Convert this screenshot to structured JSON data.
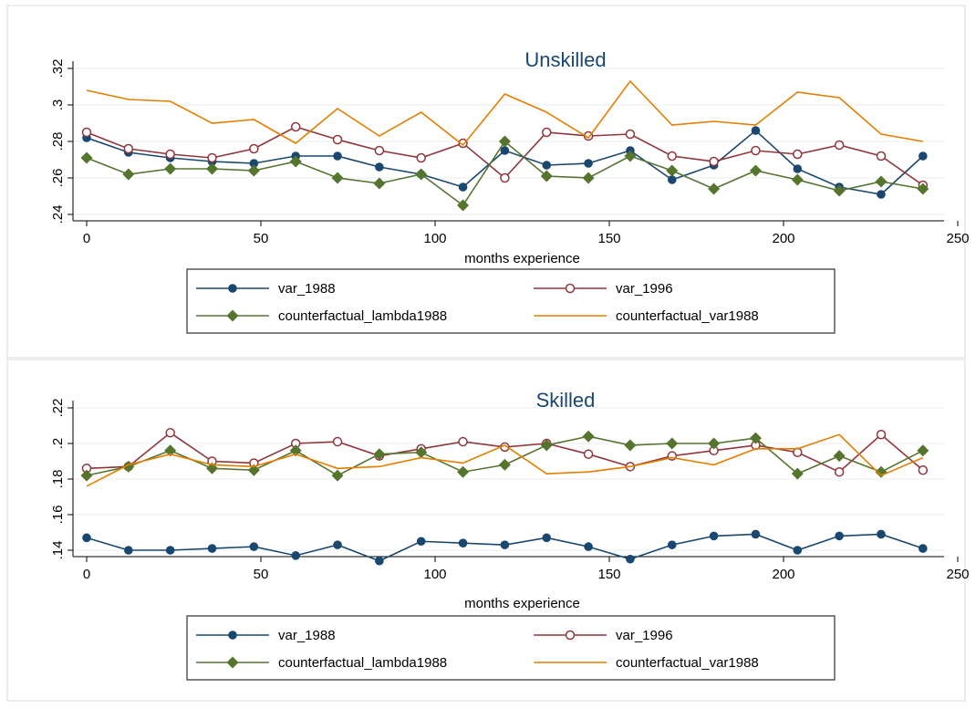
{
  "colors": {
    "var_1988": "#1a476f",
    "var_1996": "#90353b",
    "counterfactual_lambda1988": "#55752f",
    "counterfactual_var1988": "#e37e00"
  },
  "markers": {
    "var_1988": "filled-circle",
    "var_1996": "hollow-circle",
    "counterfactual_lambda1988": "filled-diamond",
    "counterfactual_var1988": "none"
  },
  "chart_data": [
    {
      "type": "line",
      "title": "Unskilled",
      "xlabel": "months experience",
      "ylabel": "",
      "xlim": [
        0,
        250
      ],
      "ylim": [
        0.24,
        0.32
      ],
      "xticks": [
        0,
        50,
        100,
        150,
        200,
        250
      ],
      "xtick_labels": [
        "0",
        "50",
        "100",
        "150",
        "200",
        "250"
      ],
      "yticks": [
        0.24,
        0.26,
        0.28,
        0.3,
        0.32
      ],
      "ytick_labels": [
        ".24",
        ".26",
        ".28",
        ".3",
        ".32"
      ],
      "grid": true,
      "legend_position": "bottom",
      "x": [
        0,
        12,
        24,
        36,
        48,
        60,
        72,
        84,
        96,
        108,
        120,
        132,
        144,
        156,
        168,
        180,
        192,
        204,
        216,
        228,
        240
      ],
      "series": [
        {
          "name": "var_1988",
          "values": [
            0.282,
            0.274,
            0.271,
            0.269,
            0.268,
            0.272,
            0.272,
            0.266,
            0.262,
            0.255,
            0.275,
            0.267,
            0.268,
            0.275,
            0.259,
            0.267,
            0.286,
            0.265,
            0.255,
            0.251,
            0.272
          ]
        },
        {
          "name": "var_1996",
          "values": [
            0.285,
            0.276,
            0.273,
            0.271,
            0.276,
            0.288,
            0.281,
            0.275,
            0.271,
            0.279,
            0.26,
            0.285,
            0.283,
            0.284,
            0.272,
            0.269,
            0.275,
            0.273,
            0.278,
            0.272,
            0.256
          ]
        },
        {
          "name": "counterfactual_lambda1988",
          "values": [
            0.271,
            0.262,
            0.265,
            0.265,
            0.264,
            0.269,
            0.26,
            0.257,
            0.262,
            0.245,
            0.28,
            0.261,
            0.26,
            0.272,
            0.264,
            0.254,
            0.264,
            0.259,
            0.253,
            0.258,
            0.254
          ]
        },
        {
          "name": "counterfactual_var1988",
          "values": [
            0.308,
            0.303,
            0.302,
            0.29,
            0.292,
            0.279,
            0.298,
            0.283,
            0.296,
            0.278,
            0.306,
            0.296,
            0.282,
            0.313,
            0.289,
            0.291,
            0.289,
            0.307,
            0.304,
            0.284,
            0.28
          ]
        }
      ],
      "legend": [
        "var_1988",
        "var_1996",
        "counterfactual_lambda1988",
        "counterfactual_var1988"
      ]
    },
    {
      "type": "line",
      "title": "Skilled",
      "xlabel": "months experience",
      "ylabel": "",
      "xlim": [
        0,
        250
      ],
      "ylim": [
        0.14,
        0.22
      ],
      "xticks": [
        0,
        50,
        100,
        150,
        200,
        250
      ],
      "xtick_labels": [
        "0",
        "50",
        "100",
        "150",
        "200",
        "250"
      ],
      "yticks": [
        0.14,
        0.16,
        0.18,
        0.2,
        0.22
      ],
      "ytick_labels": [
        ".14",
        ".16",
        ".18",
        ".2",
        ".22"
      ],
      "grid": true,
      "legend_position": "bottom",
      "x": [
        0,
        12,
        24,
        36,
        48,
        60,
        72,
        84,
        96,
        108,
        120,
        132,
        144,
        156,
        168,
        180,
        192,
        204,
        216,
        228,
        240
      ],
      "series": [
        {
          "name": "var_1988",
          "values": [
            0.147,
            0.14,
            0.14,
            0.141,
            0.142,
            0.137,
            0.143,
            0.134,
            0.145,
            0.144,
            0.143,
            0.147,
            0.142,
            0.135,
            0.143,
            0.148,
            0.149,
            0.14,
            0.148,
            0.149,
            0.141
          ]
        },
        {
          "name": "var_1996",
          "values": [
            0.186,
            0.187,
            0.206,
            0.19,
            0.189,
            0.2,
            0.201,
            0.193,
            0.197,
            0.201,
            0.198,
            0.2,
            0.194,
            0.187,
            0.193,
            0.196,
            0.199,
            0.195,
            0.184,
            0.205,
            0.185
          ]
        },
        {
          "name": "counterfactual_lambda1988",
          "values": [
            0.182,
            0.187,
            0.196,
            0.186,
            0.185,
            0.196,
            0.182,
            0.194,
            0.195,
            0.184,
            0.188,
            0.199,
            0.204,
            0.199,
            0.2,
            0.2,
            0.203,
            0.183,
            0.193,
            0.184,
            0.196
          ]
        },
        {
          "name": "counterfactual_var1988",
          "values": [
            0.176,
            0.188,
            0.194,
            0.188,
            0.187,
            0.194,
            0.186,
            0.187,
            0.192,
            0.189,
            0.199,
            0.183,
            0.184,
            0.187,
            0.192,
            0.188,
            0.197,
            0.197,
            0.205,
            0.182,
            0.192
          ]
        }
      ],
      "legend": [
        "var_1988",
        "var_1996",
        "counterfactual_lambda1988",
        "counterfactual_var1988"
      ]
    }
  ]
}
